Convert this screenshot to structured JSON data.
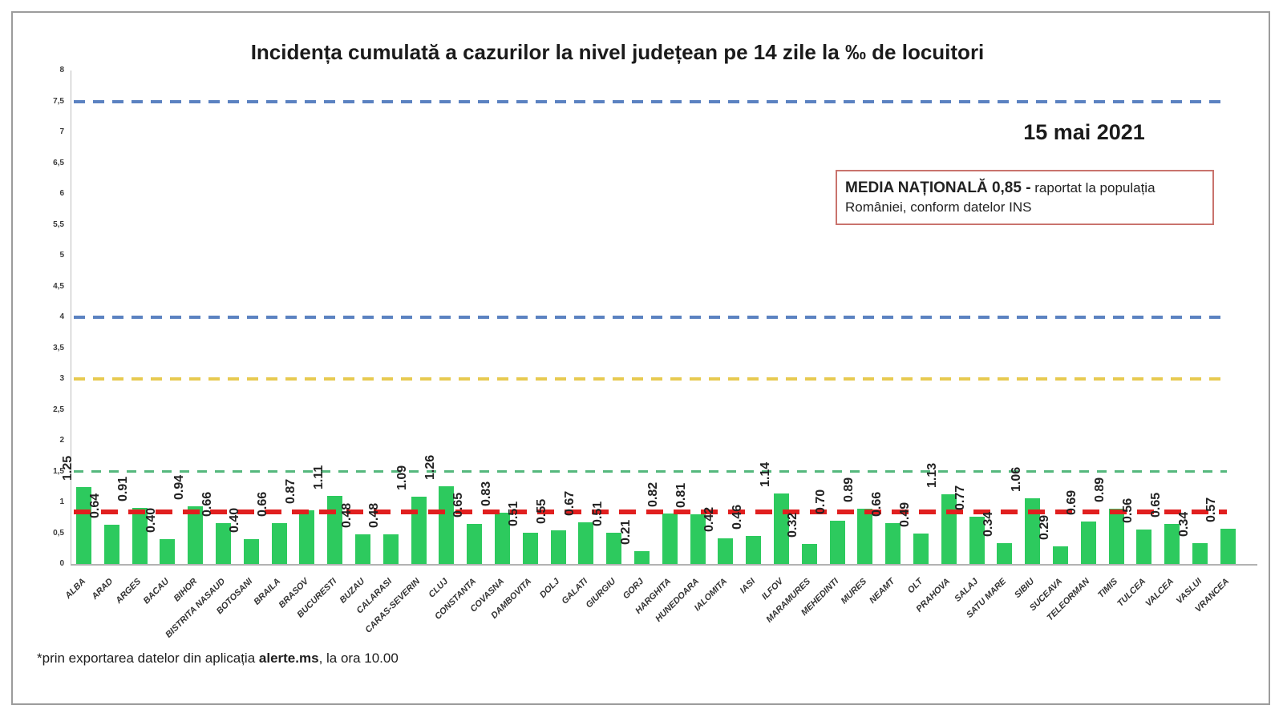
{
  "header": {
    "date_label": "15 mai 2021",
    "media_box": {
      "bold_text": "MEDIA NAȚIONALĂ  0,85 -",
      "regular_text": " raportat la populația României, conform datelor INS"
    }
  },
  "footnote": {
    "prefix": "*prin exportarea datelor din aplicația ",
    "bold": "alerte.ms",
    "suffix": ", la ora 10.00"
  },
  "chart_data": {
    "type": "bar",
    "title": "Incidența cumulată a cazurilor la nivel județean pe 14 zile la ‰ de locuitori",
    "xlabel": "",
    "ylabel": "",
    "ylim": [
      0,
      8
    ],
    "ytick_step": 0.5,
    "ytick_labels": [
      "8",
      "7,5",
      "7",
      "6,5",
      "6",
      "5,5",
      "5",
      "4,5",
      "4",
      "3,5",
      "3",
      "2,5",
      "2",
      "1,5",
      "1",
      "0,5",
      "0"
    ],
    "grid": false,
    "legend": "none",
    "bar_color": "#2dca5e",
    "categories": [
      "ALBA",
      "ARAD",
      "ARGES",
      "BACAU",
      "BIHOR",
      "BISTRITA NASAUD",
      "BOTOSANI",
      "BRAILA",
      "BRASOV",
      "BUCURESTI",
      "BUZAU",
      "CALARASI",
      "CARAS-SEVERIN",
      "CLUJ",
      "CONSTANTA",
      "COVASNA",
      "DAMBOVITA",
      "DOLJ",
      "GALATI",
      "GIURGIU",
      "GORJ",
      "HARGHITA",
      "HUNEDOARA",
      "IALOMITA",
      "IASI",
      "ILFOV",
      "MARAMURES",
      "MEHEDINTI",
      "MURES",
      "NEAMT",
      "OLT",
      "PRAHOVA",
      "SALAJ",
      "SATU MARE",
      "SIBIU",
      "SUCEAVA",
      "TELEORMAN",
      "TIMIS",
      "TULCEA",
      "VALCEA",
      "VASLUI",
      "VRANCEA"
    ],
    "values": [
      1.25,
      0.64,
      0.91,
      0.4,
      0.94,
      0.66,
      0.4,
      0.66,
      0.87,
      1.11,
      0.48,
      0.48,
      1.09,
      1.26,
      0.65,
      0.83,
      0.51,
      0.55,
      0.67,
      0.51,
      0.21,
      0.82,
      0.81,
      0.42,
      0.46,
      1.14,
      0.32,
      0.7,
      0.89,
      0.66,
      0.49,
      1.13,
      0.77,
      0.34,
      1.06,
      0.29,
      0.69,
      0.89,
      0.56,
      0.65,
      0.34,
      0.57
    ],
    "value_labels": [
      "1.25",
      "0.64",
      "0.91",
      "0.40",
      "0.94",
      "0.66",
      "0.40",
      "0.66",
      "0.87",
      "1.11",
      "0.48",
      "0.48",
      "1.09",
      "1.26",
      "0.65",
      "0.83",
      "0.51",
      "0.55",
      "0.67",
      "0.51",
      "0.21",
      "0.82",
      "0.81",
      "0.42",
      "0.46",
      "1.14",
      "0.32",
      "0.70",
      "0.89",
      "0.66",
      "0.49",
      "1.13",
      "0.77",
      "0.34",
      "1.06",
      "0.29",
      "0.69",
      "0.89",
      "0.56",
      "0.65",
      "0.34",
      "0.57"
    ],
    "reference_lines": [
      {
        "name": "upper-blue-threshold",
        "value": 7.5,
        "color": "#5b82c1",
        "thickness": 4,
        "dash": 14,
        "gap": 10
      },
      {
        "name": "lower-blue-threshold",
        "value": 4.0,
        "color": "#5b82c1",
        "thickness": 4,
        "dash": 14,
        "gap": 10
      },
      {
        "name": "yellow-threshold",
        "value": 3.0,
        "color": "#e7ca50",
        "thickness": 4,
        "dash": 14,
        "gap": 10
      },
      {
        "name": "green-threshold",
        "value": 1.5,
        "color": "#55b87d",
        "thickness": 3,
        "dash": 12,
        "gap": 10
      },
      {
        "name": "national-average",
        "value": 0.85,
        "color": "#e11f1f",
        "thickness": 6,
        "dash": 21,
        "gap": 13
      }
    ]
  }
}
